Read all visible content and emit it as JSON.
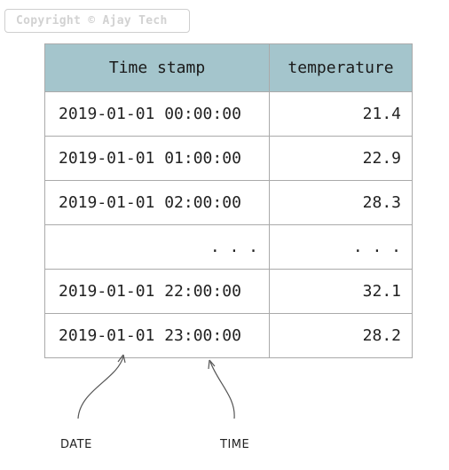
{
  "watermark": "Copyright © Ajay Tech",
  "table": {
    "headers": [
      "Time stamp",
      "temperature"
    ],
    "rows": [
      [
        "2019-01-01 00:00:00",
        "21.4"
      ],
      [
        "2019-01-01 01:00:00",
        "22.9"
      ],
      [
        "2019-01-01 02:00:00",
        "28.3"
      ],
      [
        ". . .",
        ". . ."
      ],
      [
        "2019-01-01 22:00:00",
        "32.1"
      ],
      [
        "2019-01-01 23:00:00",
        "28.2"
      ]
    ]
  },
  "annotations": {
    "date_label": "DATE",
    "time_label": "TIME"
  },
  "colors": {
    "header_bg": "#a4c5cc",
    "border": "#aaaaaa",
    "arrow": "#555555"
  }
}
